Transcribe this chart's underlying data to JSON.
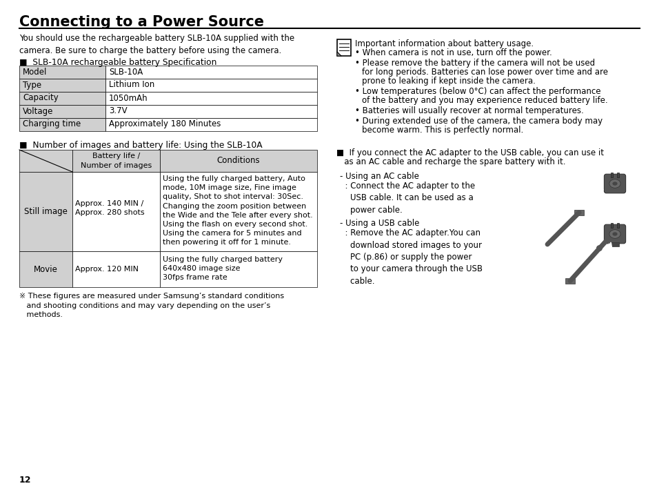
{
  "title": "Connecting to a Power Source",
  "bg_color": "#ffffff",
  "text_color": "#000000",
  "intro_text": "You should use the rechargeable battery SLB-10A supplied with the\ncamera. Be sure to charge the battery before using the camera.",
  "spec_title": "■  SLB-10A rechargeable battery Specification",
  "spec_rows": [
    [
      "Model",
      "SLB-10A"
    ],
    [
      "Type",
      "Lithium Ion"
    ],
    [
      "Capacity",
      "1050mAh"
    ],
    [
      "Voltage",
      "3.7V"
    ],
    [
      "Charging time",
      "Approximately 180 Minutes"
    ]
  ],
  "battery_title": "■  Number of images and battery life: Using the SLB-10A",
  "battery_header_col2": "Battery life /\nNumber of images",
  "battery_header_col3": "Conditions",
  "battery_row1_col1": "Still image",
  "battery_row1_col2": "Approx. 140 MIN /\nApprox. 280 shots",
  "battery_row1_col3": "Using the fully charged battery, Auto\nmode, 10M image size, Fine image\nquality, Shot to shot interval: 30Sec.\nChanging the zoom position between\nthe Wide and the Tele after every shot.\nUsing the flash on every second shot.\nUsing the camera for 5 minutes and\nthen powering it off for 1 minute.",
  "battery_row2_col1": "Movie",
  "battery_row2_col2": "Approx. 120 MIN",
  "battery_row2_col3": "Using the fully charged battery\n640x480 image size\n30fps frame rate",
  "footnote": "※ These figures are measured under Samsung’s standard conditions\n   and shooting conditions and may vary depending on the user’s\n   methods.",
  "page_num": "12",
  "right_note_title": "Important information about battery usage.",
  "right_note_bullets": [
    "When camera is not in use, turn off the power.",
    "Please remove the battery if the camera will not be used\nfor long periods. Batteries can lose power over time and are\nprone to leaking if kept inside the camera.",
    "Low temperatures (below 0°C) can affect the performance\nof the battery and you may experience reduced battery life.",
    "Batteries will usually recover at normal temperatures.",
    "During extended use of the camera, the camera body may\nbecome warm. This is perfectly normal."
  ],
  "ac_section_line1": "■  If you connect the AC adapter to the USB cable, you can use it",
  "ac_section_line2": "   as an AC cable and recharge the spare battery with it.",
  "ac_cable_label": "- Using an AC cable",
  "ac_cable_sub": "  : Connect the AC adapter to the\n    USB cable. It can be used as a\n    power cable.",
  "usb_cable_label": "- Using a USB cable",
  "usb_cable_sub": "  : Remove the AC adapter.You can\n    download stored images to your\n    PC (p.86) or supply the power\n    to your camera through the USB\n    cable.",
  "gray_color": "#d0d0d0",
  "plug_color": "#5a5a5a",
  "plug_light": "#909090"
}
